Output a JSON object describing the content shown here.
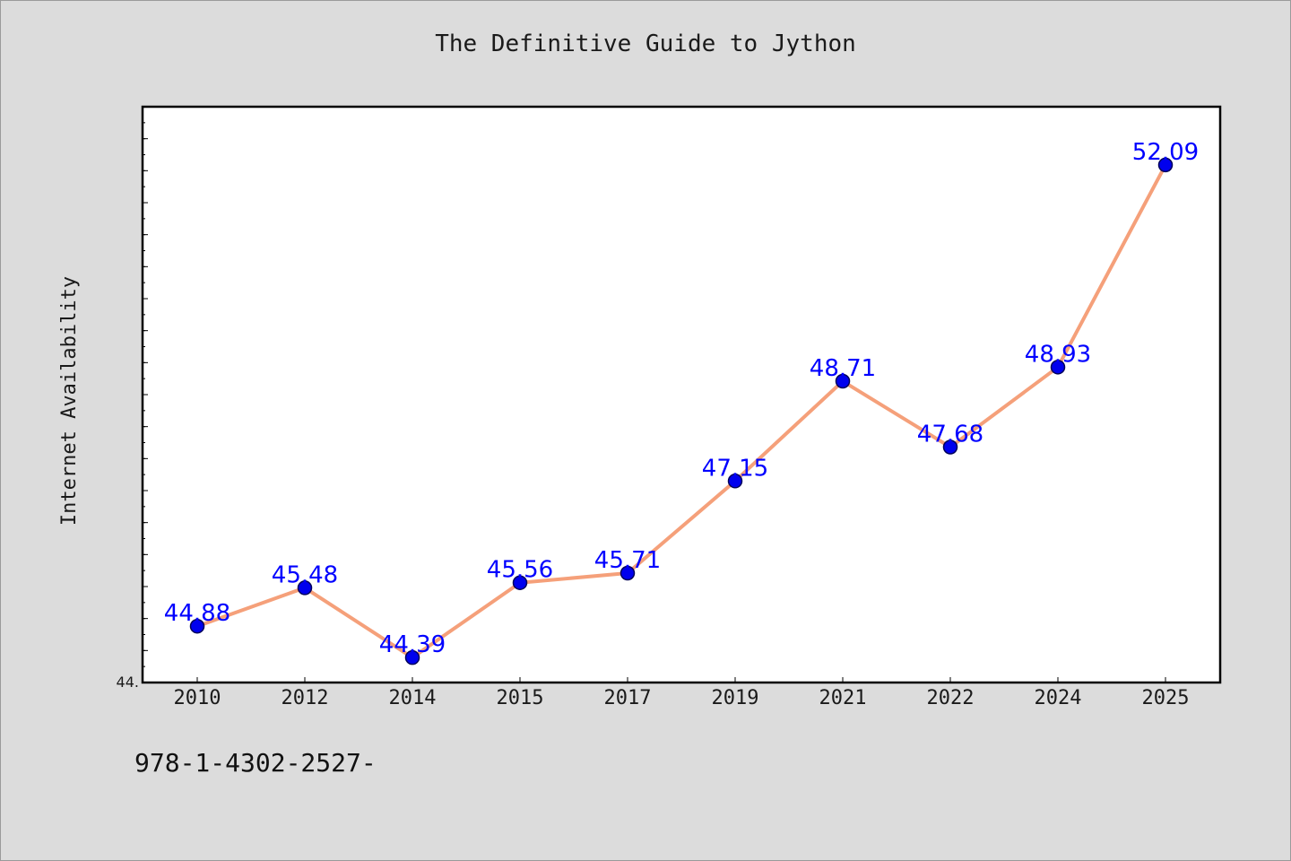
{
  "title": "The Definitive Guide to Jython",
  "footer_text": "978-1-4302-2527-",
  "colors": {
    "background": "#dcdcdc",
    "plot_background": "#ffffff",
    "line": "#f5a07a",
    "marker_fill": "#0000ee",
    "marker_edge": "#00005a",
    "data_label": "#0000ff",
    "axis": "#000000"
  },
  "chart_data": {
    "type": "line",
    "title": "The Definitive Guide to Jython",
    "xlabel": "",
    "ylabel": "Internet Availability",
    "categories": [
      "2010",
      "2012",
      "2014",
      "2015",
      "2017",
      "2019",
      "2021",
      "2022",
      "2024",
      "2025"
    ],
    "series": [
      {
        "values": [
          44.88,
          45.48,
          44.39,
          45.56,
          45.71,
          47.15,
          48.71,
          47.68,
          48.93,
          52.09
        ]
      }
    ],
    "data_labels": [
      "44.88",
      "45.48",
      "44.39",
      "45.56",
      "45.71",
      "47.15",
      "48.71",
      "47.68",
      "48.93",
      "52.09"
    ],
    "ylim": [
      44.0,
      53.0
    ],
    "y_tick_label": "44.",
    "grid": false,
    "legend": "none",
    "markers": "circle"
  }
}
